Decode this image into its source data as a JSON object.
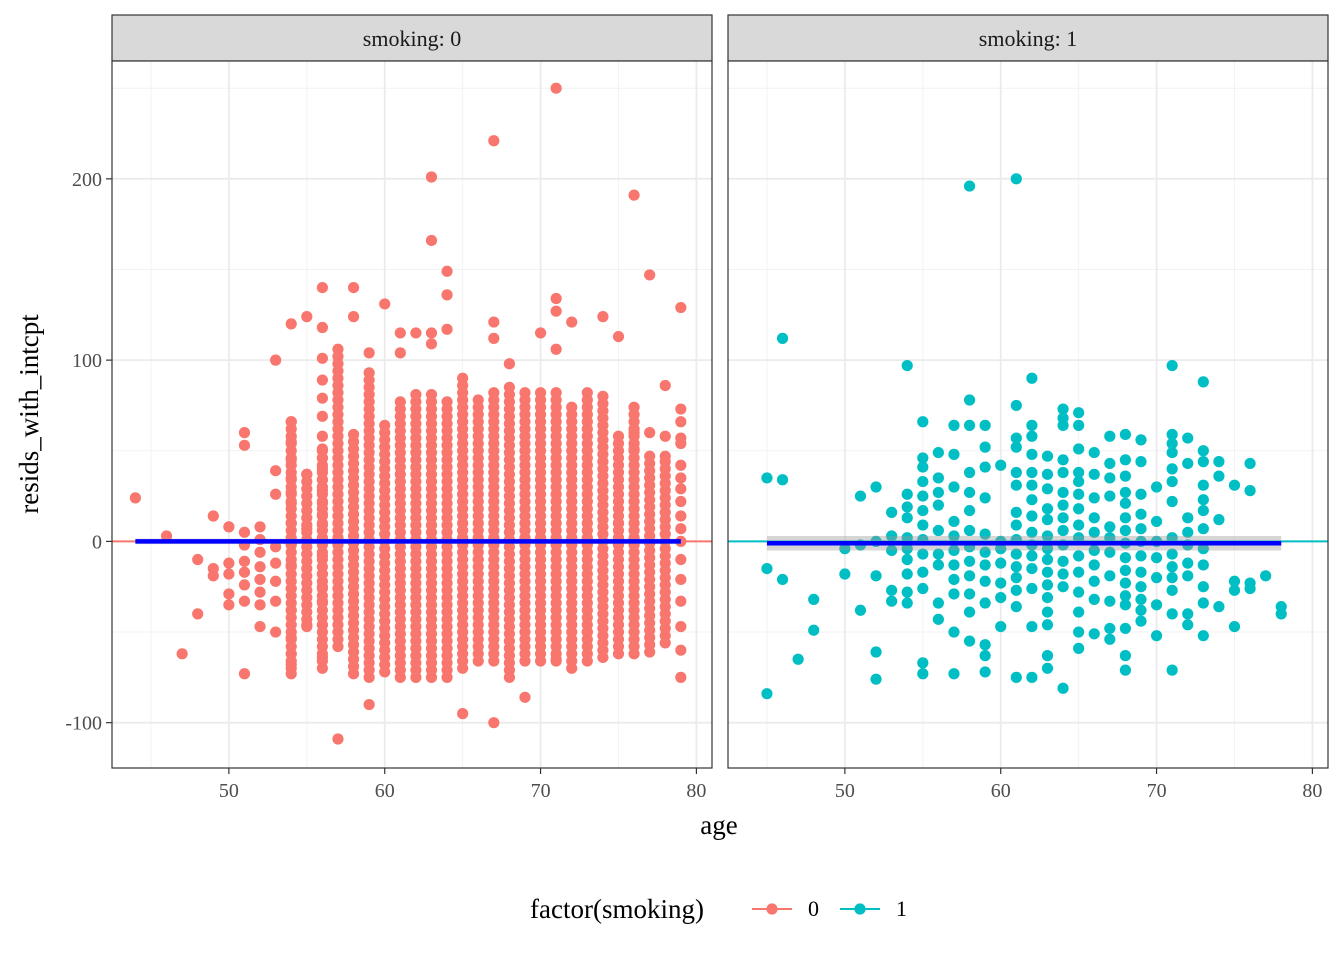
{
  "chart_data": {
    "type": "scatter",
    "xlabel": "age",
    "ylabel": "resids_with_intcpt",
    "xlim": [
      42.5,
      81
    ],
    "ylim": [
      -125,
      265
    ],
    "x_ticks": [
      50,
      60,
      70,
      80
    ],
    "y_ticks": [
      -100,
      0,
      100,
      200
    ],
    "y_tick_labels": [
      "-100",
      "0",
      "100",
      "200"
    ],
    "grid": true,
    "legend": {
      "title": "factor(smoking)",
      "position": "bottom",
      "entries": [
        {
          "label": "0",
          "color": "#F8766D"
        },
        {
          "label": "1",
          "color": "#00BFC4"
        }
      ]
    },
    "smooth_line_color": "#0000FF",
    "panels": [
      {
        "strip": "smoking: 0",
        "series_key": "0",
        "color": "#F8766D",
        "hline_y": 0,
        "fit": {
          "x_start": 44,
          "x_end": 79,
          "y": 0,
          "band": 1.5
        },
        "points_by_age": [
          [
            44,
            [
              24
            ]
          ],
          [
            46,
            [
              3
            ]
          ],
          [
            47,
            [
              -62
            ]
          ],
          [
            48,
            [
              -10,
              -40
            ]
          ],
          [
            49,
            [
              14,
              -15,
              -19
            ]
          ],
          [
            50,
            [
              8,
              -12,
              -18,
              -29,
              -35
            ]
          ],
          [
            51,
            [
              60,
              53,
              5,
              -2,
              -11,
              -17,
              -24,
              -33,
              -73
            ]
          ],
          [
            52,
            [
              8,
              1,
              -6,
              -14,
              -21,
              -28,
              -35,
              -47
            ]
          ],
          [
            53,
            [
              100,
              39,
              26,
              -3,
              -12,
              -22,
              -33,
              -50
            ]
          ],
          [
            54,
            [
              120,
              66,
              55,
              45,
              35,
              27,
              21,
              10,
              -1,
              -13,
              -26,
              -38,
              -53,
              -62,
              -68,
              -73
            ]
          ],
          [
            55,
            [
              124,
              37,
              7,
              -7,
              -46
            ]
          ],
          [
            56,
            [
              140,
              118,
              101,
              89,
              79,
              69,
              58,
              51,
              46,
              40,
              34,
              28,
              21,
              15,
              9,
              1,
              -8,
              -18,
              -25,
              -33,
              -46,
              -64
            ]
          ],
          [
            57,
            [
              -109
            ]
          ],
          [
            58,
            [
              140,
              124
            ]
          ],
          [
            59,
            [
              104,
              -90
            ]
          ],
          [
            60,
            [
              131
            ]
          ],
          [
            61,
            [
              115,
              104
            ]
          ],
          [
            62,
            [
              115
            ]
          ],
          [
            63,
            [
              201,
              166,
              115,
              109
            ]
          ],
          [
            64,
            [
              149,
              136,
              117
            ]
          ],
          [
            65,
            [
              -95
            ]
          ],
          [
            66,
            [
              -10
            ]
          ],
          [
            67,
            [
              221,
              121,
              112,
              -100
            ]
          ],
          [
            68,
            [
              98
            ]
          ],
          [
            69,
            [
              -86
            ]
          ],
          [
            70,
            [
              115
            ]
          ],
          [
            71,
            [
              250,
              134,
              127,
              106,
              -65
            ]
          ],
          [
            72,
            [
              121
            ]
          ],
          [
            73,
            [
              -50
            ]
          ],
          [
            74,
            [
              124
            ]
          ],
          [
            75,
            [
              113,
              10
            ]
          ],
          [
            76,
            [
              191,
              60,
              51
            ]
          ],
          [
            77,
            [
              147,
              60
            ]
          ],
          [
            78,
            [
              86,
              58,
              47
            ]
          ],
          [
            79,
            [
              129,
              73,
              66,
              57,
              54,
              42,
              35,
              29,
              22,
              14,
              7,
              0,
              -10,
              -21,
              -33,
              -47,
              -60,
              -75
            ]
          ]
        ],
        "dense_columns": [
          {
            "age": 54,
            "min": -70,
            "max": 66
          },
          {
            "age": 55,
            "min": -47,
            "max": 39
          },
          {
            "age": 56,
            "min": -70,
            "max": 50
          },
          {
            "age": 57,
            "min": -58,
            "max": 107
          },
          {
            "age": 58,
            "min": -73,
            "max": 60
          },
          {
            "age": 59,
            "min": -75,
            "max": 95
          },
          {
            "age": 60,
            "min": -72,
            "max": 65
          },
          {
            "age": 61,
            "min": -75,
            "max": 80
          },
          {
            "age": 62,
            "min": -75,
            "max": 82
          },
          {
            "age": 63,
            "min": -75,
            "max": 83
          },
          {
            "age": 64,
            "min": -75,
            "max": 77
          },
          {
            "age": 65,
            "min": -70,
            "max": 90
          },
          {
            "age": 66,
            "min": -66,
            "max": 78
          },
          {
            "age": 67,
            "min": -66,
            "max": 82
          },
          {
            "age": 68,
            "min": -75,
            "max": 85
          },
          {
            "age": 69,
            "min": -66,
            "max": 84
          },
          {
            "age": 70,
            "min": -66,
            "max": 84
          },
          {
            "age": 71,
            "min": -66,
            "max": 82
          },
          {
            "age": 72,
            "min": -70,
            "max": 77
          },
          {
            "age": 73,
            "min": -66,
            "max": 82
          },
          {
            "age": 74,
            "min": -64,
            "max": 80
          },
          {
            "age": 75,
            "min": -62,
            "max": 61
          },
          {
            "age": 76,
            "min": -62,
            "max": 74
          },
          {
            "age": 77,
            "min": -61,
            "max": 50
          },
          {
            "age": 78,
            "min": -56,
            "max": 47
          }
        ]
      },
      {
        "strip": "smoking: 1",
        "series_key": "1",
        "color": "#00BFC4",
        "hline_y": 0,
        "fit": {
          "x_start": 45,
          "x_end": 78,
          "y": -1,
          "band": 4
        },
        "points_by_age": [
          [
            45,
            [
              35,
              -15,
              -84
            ]
          ],
          [
            46,
            [
              112,
              34,
              -21
            ]
          ],
          [
            47,
            [
              -65
            ]
          ],
          [
            48,
            [
              -32,
              -49
            ]
          ],
          [
            50,
            [
              -4,
              -18
            ]
          ],
          [
            51,
            [
              25,
              -2,
              -38
            ]
          ],
          [
            52,
            [
              30,
              0,
              -19,
              -61,
              -76
            ]
          ],
          [
            53,
            [
              16,
              3,
              -5,
              -27,
              -33
            ]
          ],
          [
            54,
            [
              97,
              26,
              19,
              13,
              2,
              -4,
              -10,
              -18,
              -28,
              -34
            ]
          ],
          [
            55,
            [
              66,
              46,
              41,
              33,
              25,
              17,
              9,
              1,
              -7,
              -17,
              -26,
              -67,
              -73
            ]
          ],
          [
            56,
            [
              49,
              35,
              27,
              20,
              6,
              -7,
              -13,
              -34,
              -43
            ]
          ],
          [
            57,
            [
              64,
              48,
              30,
              11,
              3,
              -5,
              -13,
              -21,
              -29,
              -50,
              -73
            ]
          ],
          [
            58,
            [
              196,
              78,
              64,
              38,
              27,
              17,
              6,
              -3,
              -11,
              -19,
              -29,
              -39,
              -55
            ]
          ],
          [
            59,
            [
              64,
              52,
              41,
              24,
              4,
              -6,
              -13,
              -22,
              -34,
              -57,
              -63,
              -72
            ]
          ],
          [
            60,
            [
              42,
              0,
              -4,
              -12,
              -23,
              -31,
              -47
            ]
          ],
          [
            61,
            [
              200,
              75,
              57,
              52,
              38,
              31,
              16,
              9,
              1,
              -7,
              -14,
              -20,
              -27,
              -36,
              -75
            ]
          ],
          [
            62,
            [
              90,
              64,
              58,
              48,
              38,
              31,
              23,
              14,
              5,
              -2,
              -8,
              -15,
              -26,
              -47,
              -75
            ]
          ],
          [
            63,
            [
              47,
              37,
              29,
              18,
              12,
              3,
              -4,
              -10,
              -17,
              -24,
              -31,
              -39,
              -46,
              -63,
              -70
            ]
          ],
          [
            64,
            [
              73,
              68,
              64,
              45,
              38,
              27,
              20,
              13,
              6,
              -2,
              -11,
              -18,
              -25,
              -81
            ]
          ],
          [
            65,
            [
              71,
              64,
              51,
              38,
              33,
              26,
              18,
              9,
              2,
              -8,
              -17,
              -28,
              -39,
              -50,
              -59
            ]
          ],
          [
            66,
            [
              49,
              37,
              24,
              13,
              5,
              -5,
              -13,
              -22,
              -32,
              -51
            ]
          ],
          [
            67,
            [
              58,
              43,
              35,
              25,
              8,
              2,
              -6,
              -19,
              -33,
              -48,
              -54
            ]
          ],
          [
            68,
            [
              59,
              45,
              36,
              27,
              21,
              13,
              6,
              -1,
              -9,
              -16,
              -23,
              -30,
              -35,
              -48,
              -63,
              -71
            ]
          ],
          [
            69,
            [
              56,
              44,
              26,
              15,
              7,
              0,
              -8,
              -17,
              -25,
              -32,
              -38,
              -44
            ]
          ],
          [
            70,
            [
              30,
              11,
              0,
              -9,
              -20,
              -35,
              -52
            ]
          ],
          [
            71,
            [
              97,
              59,
              54,
              49,
              40,
              33,
              22,
              2,
              -7,
              -14,
              -20,
              -27,
              -40,
              -71
            ]
          ],
          [
            72,
            [
              57,
              43,
              13,
              5,
              -2,
              -12,
              -19,
              -40,
              -46
            ]
          ],
          [
            73,
            [
              88,
              50,
              44,
              31,
              23,
              17,
              7,
              -4,
              -13,
              -25,
              -34,
              -52
            ]
          ],
          [
            74,
            [
              44,
              36,
              12,
              -36
            ]
          ],
          [
            75,
            [
              31,
              -22,
              -27,
              -47
            ]
          ],
          [
            76,
            [
              43,
              28,
              -23,
              -26
            ]
          ],
          [
            77,
            [
              -19
            ]
          ],
          [
            78,
            [
              -36,
              -40
            ]
          ]
        ],
        "dense_columns": []
      }
    ]
  }
}
